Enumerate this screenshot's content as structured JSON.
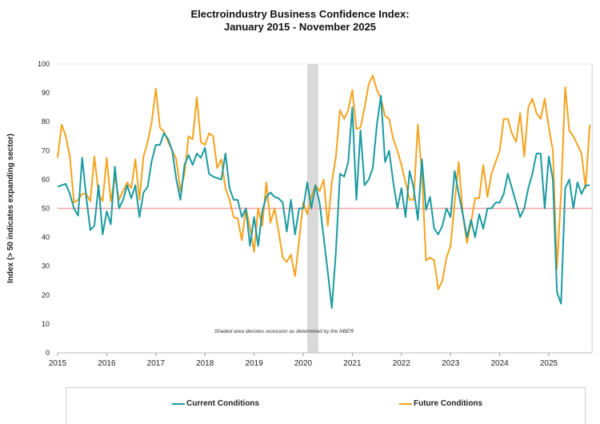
{
  "chart_data": {
    "type": "line",
    "title": "Electroindustry Business Confidence Index:",
    "subtitle": "January 2015 - November 2025",
    "ylabel": "Index (> 50 indicates expanding sector)",
    "xlabel": "",
    "ylim": [
      0,
      100
    ],
    "yticks": [
      "0",
      "10",
      "20",
      "30",
      "40",
      "50",
      "60",
      "70",
      "80",
      "90",
      "100"
    ],
    "xticks": [
      "2015",
      "2016",
      "2017",
      "2018",
      "2019",
      "2020",
      "2021",
      "2022",
      "2023",
      "2024",
      "2025"
    ],
    "start": "2015-01",
    "end": "2025-11",
    "frequency": "monthly",
    "reference_line": {
      "value": 50,
      "color": "#f4a3a3"
    },
    "recession": {
      "start": "2020-02",
      "end": "2020-04",
      "color": "#d9d9d9"
    },
    "annotation": "Shaded area denotes recession as determined by the NBER",
    "legend_position": "bottom",
    "series": [
      {
        "name": "Current Conditions",
        "color": "#1a9aa0",
        "values": [
          57.5,
          58,
          58.5,
          55,
          50,
          47.5,
          67.5,
          54,
          42.5,
          44,
          58,
          41,
          49,
          44.5,
          64.5,
          50,
          53,
          58,
          53.5,
          58,
          47,
          55.5,
          57.5,
          66.5,
          72,
          72,
          76,
          74,
          70,
          60,
          53,
          65,
          68.5,
          65,
          69,
          67.5,
          71,
          62,
          61,
          60.5,
          60,
          69,
          57,
          53,
          53,
          47,
          50,
          37,
          47,
          37,
          49,
          54,
          55.5,
          54,
          53.5,
          52,
          42,
          53,
          41,
          50,
          50,
          59,
          50,
          58,
          52,
          40,
          28,
          15.5,
          35,
          62,
          61,
          66,
          85,
          53,
          77,
          58,
          60,
          64,
          79,
          89,
          66,
          70,
          59,
          50,
          57,
          47,
          63,
          57,
          46,
          67,
          49.5,
          54,
          43,
          41,
          44,
          50,
          47,
          63,
          55,
          48,
          40,
          46,
          40,
          48,
          43,
          50,
          50,
          52,
          52,
          55,
          62,
          57,
          52,
          47,
          50,
          57,
          62,
          69,
          69,
          50,
          68,
          60,
          21,
          17,
          57,
          60,
          50,
          59,
          55,
          58,
          58
        ]
      },
      {
        "name": "Future Conditions",
        "color": "#f5a31e",
        "values": [
          67.5,
          79,
          75,
          68,
          52,
          53,
          55,
          55,
          52.5,
          68,
          55,
          52.5,
          67.5,
          52.5,
          61,
          53,
          56,
          59,
          57,
          67,
          53,
          68,
          73,
          80,
          91.5,
          78,
          76.5,
          73,
          70,
          67,
          56,
          62,
          75,
          74,
          88.5,
          73,
          72,
          76,
          75,
          64,
          67,
          57,
          53,
          47,
          46.5,
          39,
          50,
          43.5,
          35,
          50,
          44,
          59,
          45,
          50,
          42,
          33,
          31.5,
          34,
          26.5,
          39,
          52,
          48,
          54,
          58,
          56,
          60,
          44,
          59,
          68,
          84,
          81,
          84,
          91,
          77.5,
          78,
          85,
          93,
          96,
          91,
          88,
          82,
          81,
          74,
          70,
          65,
          59,
          53,
          53,
          79,
          62,
          32,
          33,
          32,
          22,
          25,
          33,
          37,
          52,
          66,
          48,
          38,
          45,
          53.5,
          53.5,
          65,
          54,
          62,
          66,
          70,
          81,
          81,
          76,
          73,
          83,
          68,
          85,
          88,
          83,
          81,
          88,
          78,
          70,
          29,
          55,
          92,
          77,
          75,
          72,
          69,
          57,
          79
        ]
      }
    ]
  }
}
